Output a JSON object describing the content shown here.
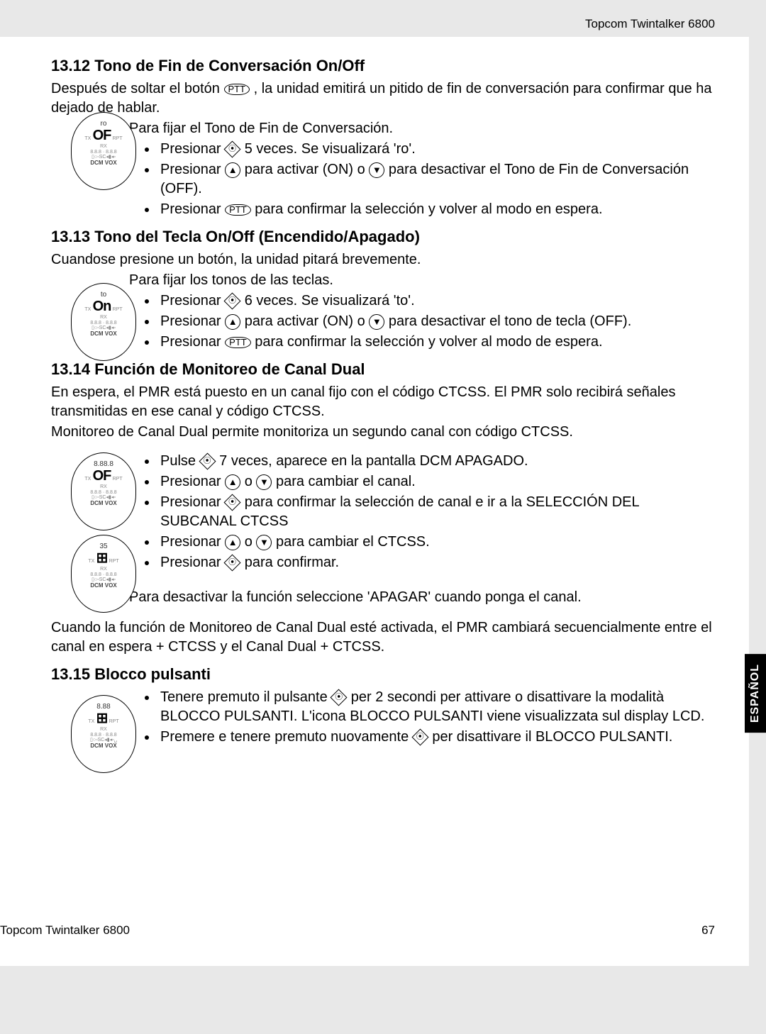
{
  "header": {
    "product": "Topcom Twintalker 6800"
  },
  "footer": {
    "product": "Topcom Twintalker 6800",
    "page": "67"
  },
  "side_tab": "ESPAÑOL",
  "icons": {
    "ptt": "PTT",
    "menu": "⦿",
    "up": "▲",
    "down": "▼"
  },
  "sections": [
    {
      "number": "13.12",
      "title": "Tono de Fin de Conversación On/Off",
      "intro": "Después de soltar el botón {PTT} , la unidad emitirá un pitido de fin de conversación para confirmar que ha dejado de hablar.",
      "lead": "Para fijar el Tono de Fin de Conversación.",
      "bullets": [
        "Presionar {MENU} 5 veces. Se visualizará 'ro'.",
        "Presionar {UP} para activar (ON) o {DOWN} para desactivar el Tono de Fin de Conversación (OFF).",
        "Presionar {PTT} para confirmar la selección y volver al modo en espera."
      ],
      "device": {
        "line1": "ro",
        "big": "OF",
        "bot": "DCM VOX"
      }
    },
    {
      "number": "13.13",
      "title": "Tono del Tecla On/Off (Encendido/Apagado)",
      "intro": "Cuandose presione un botón, la unidad pitará brevemente.",
      "lead": "Para fijar los tonos de las teclas.",
      "bullets": [
        "Presionar {MENU} 6 veces. Se visualizará 'to'.",
        "Presionar {UP} para activar (ON) o {DOWN} para desactivar el tono de tecla (OFF).",
        "Presionar {PTT} para confirmar la selección y volver al modo de espera."
      ],
      "device": {
        "line1": "to",
        "big": "On",
        "bot": "DCM VOX"
      }
    },
    {
      "number": "13.14",
      "title": "Función de Monitoreo de Canal Dual",
      "intro": "En espera, el PMR está puesto en un canal fijo con el código CTCSS. El PMR solo recibirá señales transmitidas en ese canal y código CTCSS.",
      "intro2": "Monitoreo de Canal Dual permite monitoriza un segundo canal con código CTCSS.",
      "bullets": [
        "Pulse {MENU} 7 veces, aparece en la pantalla DCM APAGADO.",
        "Presionar {UP} o {DOWN} para cambiar el canal.",
        "Presionar {MENU} para confirmar la selección de canal e ir a la SELECCIÓN DEL SUBCANAL CTCSS",
        "Presionar {UP} o {DOWN} para cambiar el CTCSS.",
        "Presionar {MENU} para confirmar."
      ],
      "tail_indent": "Para desactivar la función seleccione 'APAGAR' cuando ponga el canal.",
      "tail": "Cuando la función de Monitoreo de Canal Dual esté activada, el PMR cambiará secuencialmente entre el canal en espera + CTCSS y el Canal Dual + CTCSS.",
      "device": {
        "line1": "8.88.8",
        "big": "OF",
        "bot": "DCM VOX"
      },
      "device2": {
        "line1": "35",
        "big": "⊞",
        "bot": "DCM VOX"
      }
    },
    {
      "number": "13.15",
      "title": "Blocco pulsanti",
      "bullets": [
        "Tenere premuto il pulsante {MENU} per 2 secondi per attivare o disattivare la modalità BLOCCO PULSANTI. L'icona BLOCCO PULSANTI viene visualizzata sul display LCD.",
        "Premere e tenere premuto nuovamente {MENU} per disattivare il BLOCCO PULSANTI."
      ],
      "device": {
        "line1": "8.88",
        "big": "⊞",
        "bot": "DCM VOX"
      }
    }
  ]
}
